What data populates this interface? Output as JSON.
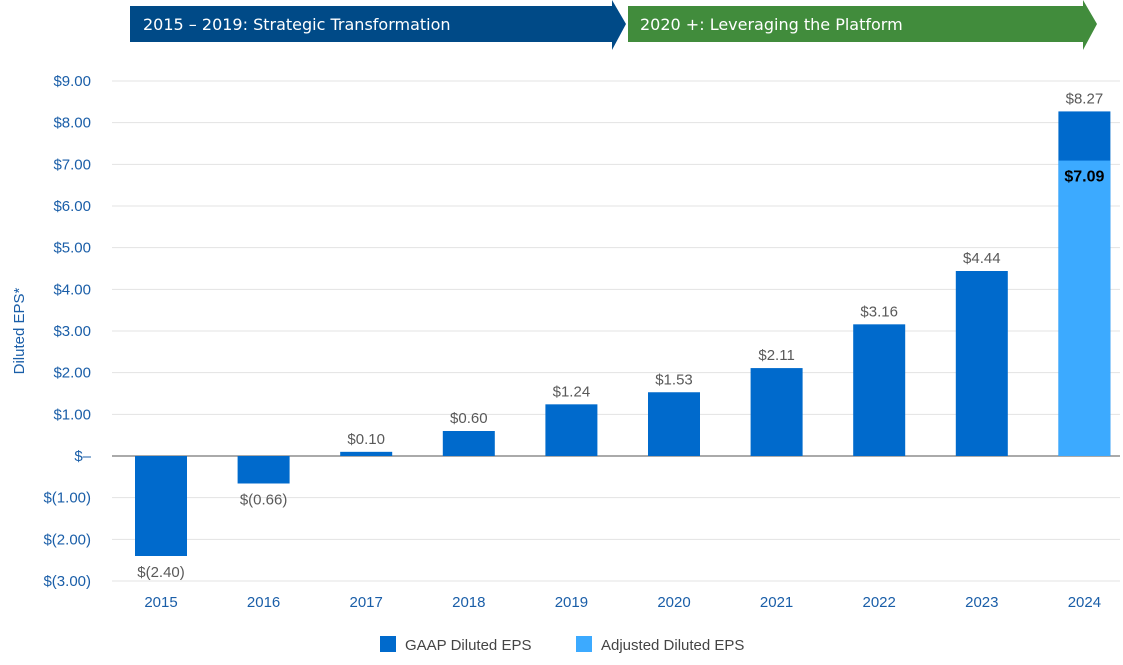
{
  "banners": [
    {
      "label": "2015 – 2019: Strategic Transformation",
      "color": "#004a87"
    },
    {
      "label": "2020 +: Leveraging the Platform",
      "color": "#418c3c"
    }
  ],
  "chart_data": {
    "type": "bar",
    "ylabel": "Diluted EPS*",
    "ylim": [
      -3,
      9
    ],
    "yticks": [
      {
        "v": 9,
        "label": "$9.00"
      },
      {
        "v": 8,
        "label": "$8.00"
      },
      {
        "v": 7,
        "label": "$7.00"
      },
      {
        "v": 6,
        "label": "$6.00"
      },
      {
        "v": 5,
        "label": "$5.00"
      },
      {
        "v": 4,
        "label": "$4.00"
      },
      {
        "v": 3,
        "label": "$3.00"
      },
      {
        "v": 2,
        "label": "$2.00"
      },
      {
        "v": 1,
        "label": "$1.00"
      },
      {
        "v": 0,
        "label": "$–"
      },
      {
        "v": -1,
        "label": "$(1.00)"
      },
      {
        "v": -2,
        "label": "$(2.00)"
      },
      {
        "v": -3,
        "label": "$(3.00)"
      }
    ],
    "grid": true,
    "legend_position": "bottom",
    "categories": [
      "2015",
      "2016",
      "2017",
      "2018",
      "2019",
      "2020",
      "2021",
      "2022",
      "2023",
      "2024"
    ],
    "series": [
      {
        "name": "GAAP Diluted EPS",
        "color": "#006acc",
        "values": [
          -2.4,
          -0.66,
          0.1,
          0.6,
          1.24,
          1.53,
          2.11,
          3.16,
          4.44,
          8.27
        ],
        "labels": [
          "$(2.40)",
          "$(0.66)",
          "$0.10",
          "$0.60",
          "$1.24",
          "$1.53",
          "$2.11",
          "$3.16",
          "$4.44",
          "$8.27"
        ]
      },
      {
        "name": "Adjusted Diluted EPS",
        "color": "#3caaff",
        "values": [
          null,
          null,
          null,
          null,
          null,
          null,
          null,
          null,
          null,
          7.09
        ],
        "labels": [
          null,
          null,
          null,
          null,
          null,
          null,
          null,
          null,
          null,
          "$7.09"
        ]
      }
    ]
  }
}
